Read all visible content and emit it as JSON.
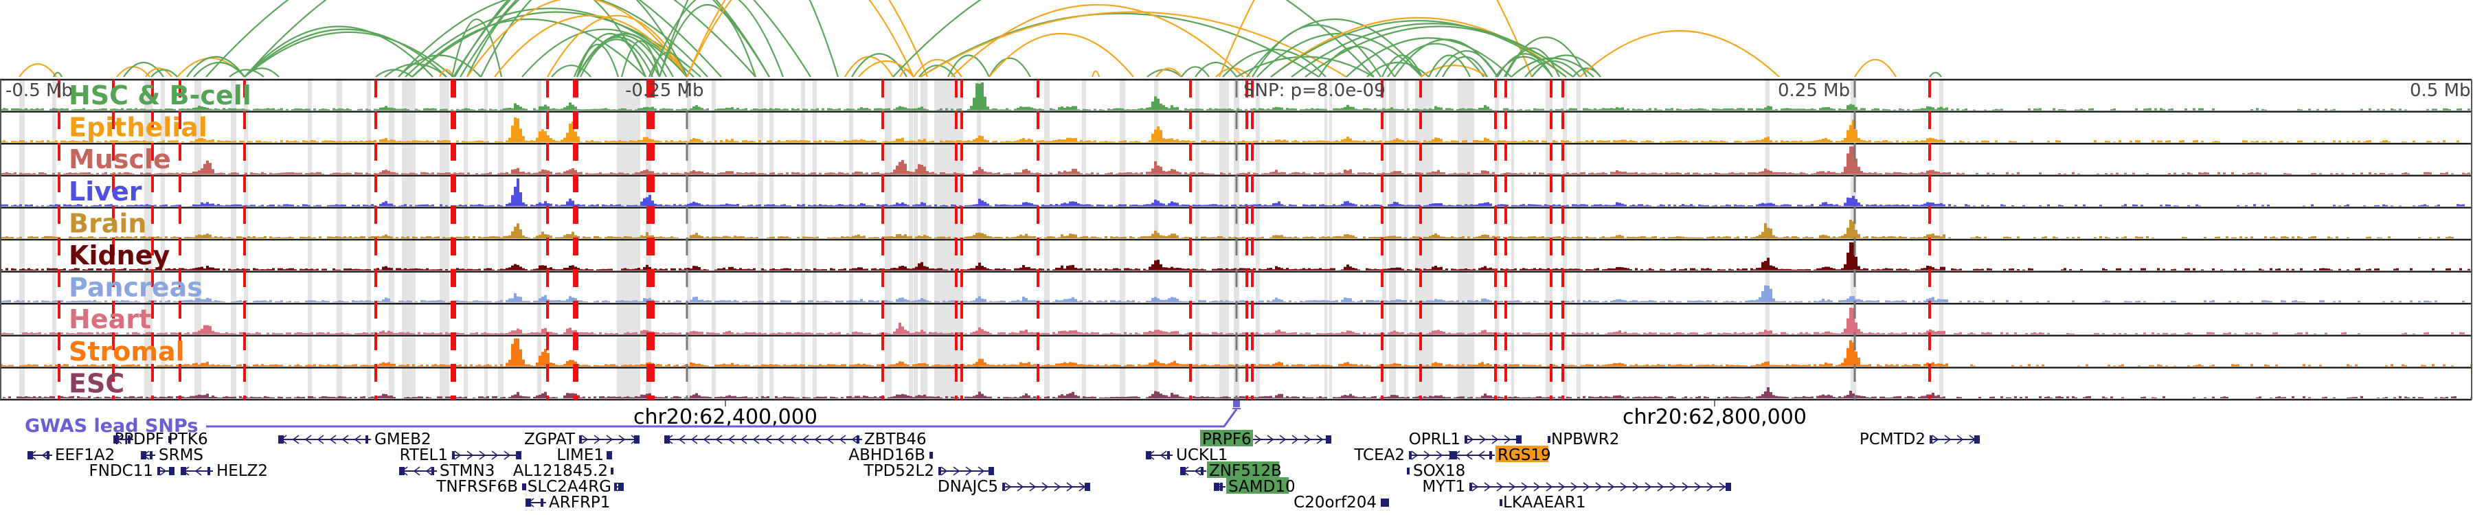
{
  "region": {
    "axis_labels": {
      "left_edge": "-0.5 Mb",
      "left_quarter": "-0.25 Mb",
      "snp": "SNP: p=8.0e-09",
      "right_quarter": "0.25 Mb",
      "right_edge": "0.5 Mb"
    },
    "coordinate_labels": [
      "chr20:62,400,000",
      "chr20:62,800,000"
    ]
  },
  "colors": {
    "loop_green": "#5aa55a",
    "loop_orange": "#f5a623",
    "highlight_red": "#ee1111",
    "band_gray": "#e4e4e4",
    "gene_navy": "#1f1f70",
    "gwas_purple": "#6a5fd1",
    "gene_highlight_green": "#56a05a",
    "gene_highlight_orange": "#f79a1a"
  },
  "tracks": [
    {
      "name": "HSC & B-cell",
      "color": "#55a355"
    },
    {
      "name": "Epithelial",
      "color": "#f59d15"
    },
    {
      "name": "Muscle",
      "color": "#c4655e"
    },
    {
      "name": "Liver",
      "color": "#5050e0"
    },
    {
      "name": "Brain",
      "color": "#c49330"
    },
    {
      "name": "Kidney",
      "color": "#6b0606"
    },
    {
      "name": "Pancreas",
      "color": "#8aa5e0"
    },
    {
      "name": "Heart",
      "color": "#d9707f"
    },
    {
      "name": "Stromal",
      "color": "#f77a12"
    },
    {
      "name": "ESC",
      "color": "#8a4060"
    }
  ],
  "gwas": {
    "label": "GWAS lead SNPs"
  },
  "genes": [
    {
      "name": "PPDPF",
      "strand": "none",
      "row": 0,
      "highlight": ""
    },
    {
      "name": "PTK6",
      "strand": "-",
      "row": 0,
      "highlight": ""
    },
    {
      "name": "GMEB2",
      "strand": "-",
      "row": 0,
      "highlight": ""
    },
    {
      "name": "ZGPAT",
      "strand": "+",
      "row": 0,
      "highlight": ""
    },
    {
      "name": "ZBTB46",
      "strand": "-",
      "row": 0,
      "highlight": ""
    },
    {
      "name": "PRPF6",
      "strand": "+",
      "row": 0,
      "highlight": "green"
    },
    {
      "name": "OPRL1",
      "strand": "+",
      "row": 0,
      "highlight": ""
    },
    {
      "name": "NPBWR2",
      "strand": "none",
      "row": 0,
      "highlight": ""
    },
    {
      "name": "PCMTD2",
      "strand": "+",
      "row": 0,
      "highlight": ""
    },
    {
      "name": "EEF1A2",
      "strand": "-",
      "row": 1,
      "highlight": ""
    },
    {
      "name": "SRMS",
      "strand": "-",
      "row": 1,
      "highlight": ""
    },
    {
      "name": "RTEL1",
      "strand": "+",
      "row": 1,
      "highlight": ""
    },
    {
      "name": "LIME1",
      "strand": "+",
      "row": 1,
      "highlight": ""
    },
    {
      "name": "ABHD16B",
      "strand": "none",
      "row": 1,
      "highlight": ""
    },
    {
      "name": "UCKL1",
      "strand": "-",
      "row": 1,
      "highlight": ""
    },
    {
      "name": "TCEA2",
      "strand": "+",
      "row": 1,
      "highlight": ""
    },
    {
      "name": "RGS19",
      "strand": "-",
      "row": 1,
      "highlight": "orange"
    },
    {
      "name": "FNDC11",
      "strand": "+",
      "row": 2,
      "highlight": ""
    },
    {
      "name": "HELZ2",
      "strand": "-",
      "row": 2,
      "highlight": ""
    },
    {
      "name": "STMN3",
      "strand": "-",
      "row": 2,
      "highlight": ""
    },
    {
      "name": "AL121845.2",
      "strand": "none",
      "row": 2,
      "highlight": ""
    },
    {
      "name": "TPD52L2",
      "strand": "+",
      "row": 2,
      "highlight": ""
    },
    {
      "name": "ZNF512B",
      "strand": "-",
      "row": 2,
      "highlight": "green"
    },
    {
      "name": "SOX18",
      "strand": "none",
      "row": 2,
      "highlight": ""
    },
    {
      "name": "TNFRSF6B",
      "strand": "none",
      "row": 3,
      "highlight": ""
    },
    {
      "name": "SLC2A4RG",
      "strand": "+",
      "row": 3,
      "highlight": ""
    },
    {
      "name": "DNAJC5",
      "strand": "+",
      "row": 3,
      "highlight": ""
    },
    {
      "name": "SAMD10",
      "strand": "-",
      "row": 3,
      "highlight": "green"
    },
    {
      "name": "MYT1",
      "strand": "+",
      "row": 3,
      "highlight": ""
    },
    {
      "name": "ARFRP1",
      "strand": "-",
      "row": 4,
      "highlight": ""
    },
    {
      "name": "C20orf204",
      "strand": "+",
      "row": 4,
      "highlight": ""
    },
    {
      "name": "LKAAEAR1",
      "strand": "none",
      "row": 4,
      "highlight": ""
    }
  ]
}
